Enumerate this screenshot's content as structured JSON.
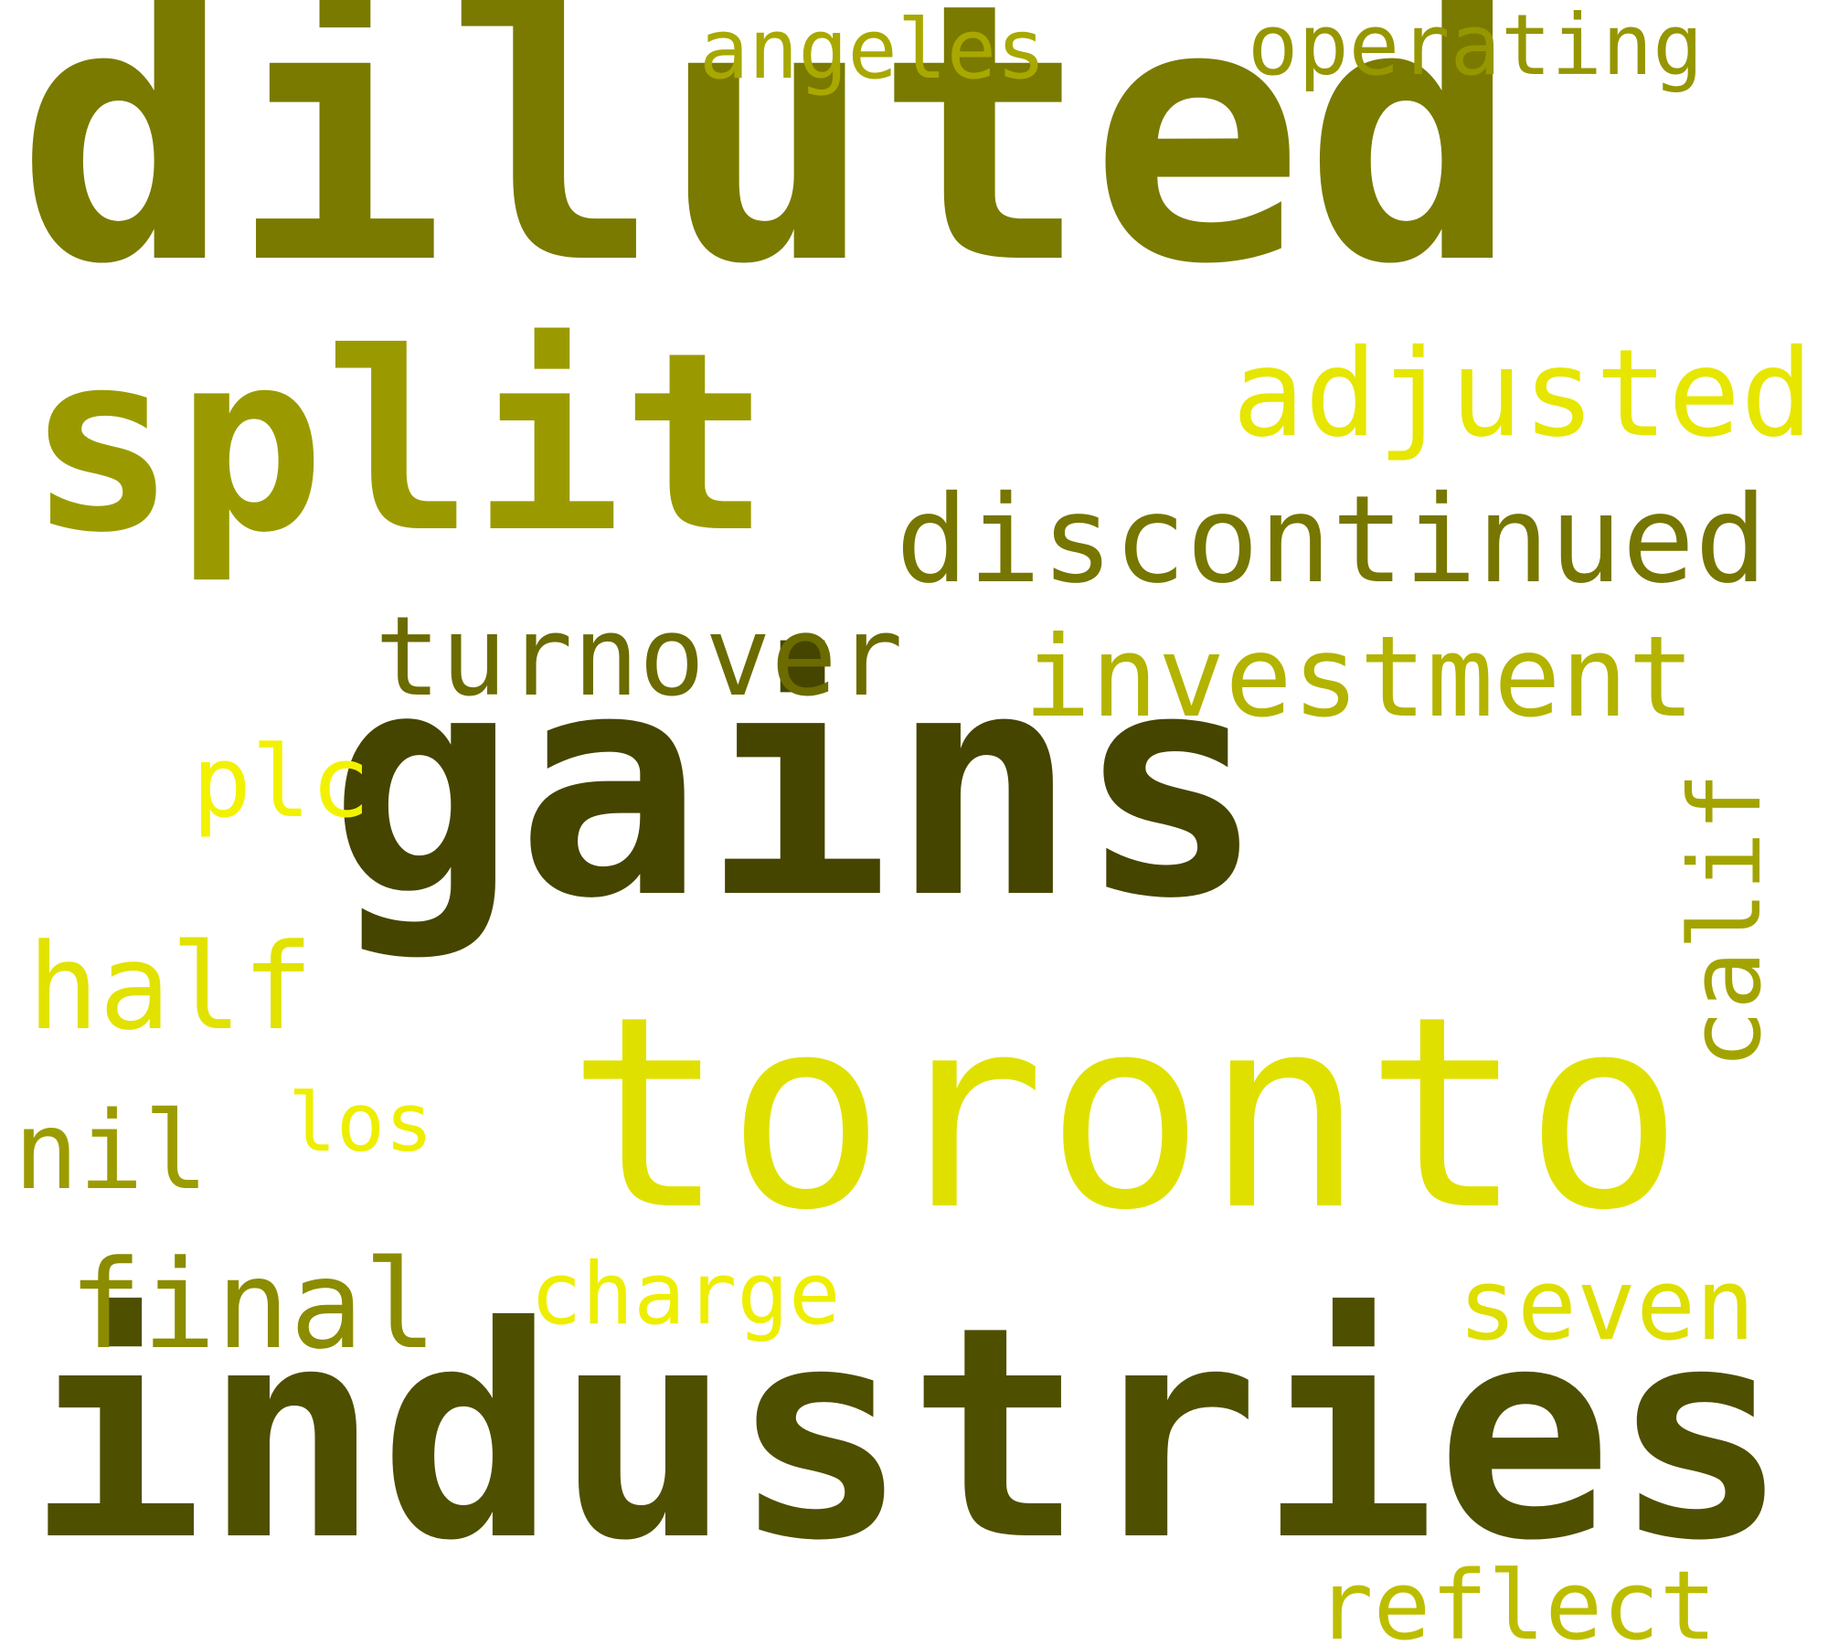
{
  "words": {
    "diluted": {
      "text": "diluted",
      "color": "#7a7a00"
    },
    "split": {
      "text": "split",
      "color": "#9a9a00"
    },
    "gains": {
      "text": "gains",
      "color": "#454500"
    },
    "toronto": {
      "text": "toronto",
      "color": "#e0e000"
    },
    "industries": {
      "text": "industries",
      "color": "#4f4f00"
    },
    "angeles": {
      "text": "angeles",
      "color": "#a8a800"
    },
    "operating": {
      "text": "operating",
      "color": "#969600"
    },
    "adjusted": {
      "text": "adjusted",
      "color": "#e6e600"
    },
    "discontinued": {
      "text": "discontinued",
      "color": "#767600"
    },
    "turnover": {
      "text": "turnover",
      "color": "#6b6b00"
    },
    "investment": {
      "text": "investment",
      "color": "#b3b300"
    },
    "plc": {
      "text": "plc",
      "color": "#f2f200"
    },
    "calif": {
      "text": "calif",
      "color": "#a3a300"
    },
    "half": {
      "text": "half",
      "color": "#e2e200"
    },
    "nil": {
      "text": "nil",
      "color": "#9c9c00"
    },
    "los": {
      "text": "los",
      "color": "#eeee00"
    },
    "final": {
      "text": "final",
      "color": "#8c8c00"
    },
    "charge": {
      "text": "charge",
      "color": "#eeee00"
    },
    "seven": {
      "text": "seven",
      "color": "#dede00"
    },
    "reflect": {
      "text": "reflect",
      "color": "#bdbd00"
    }
  }
}
